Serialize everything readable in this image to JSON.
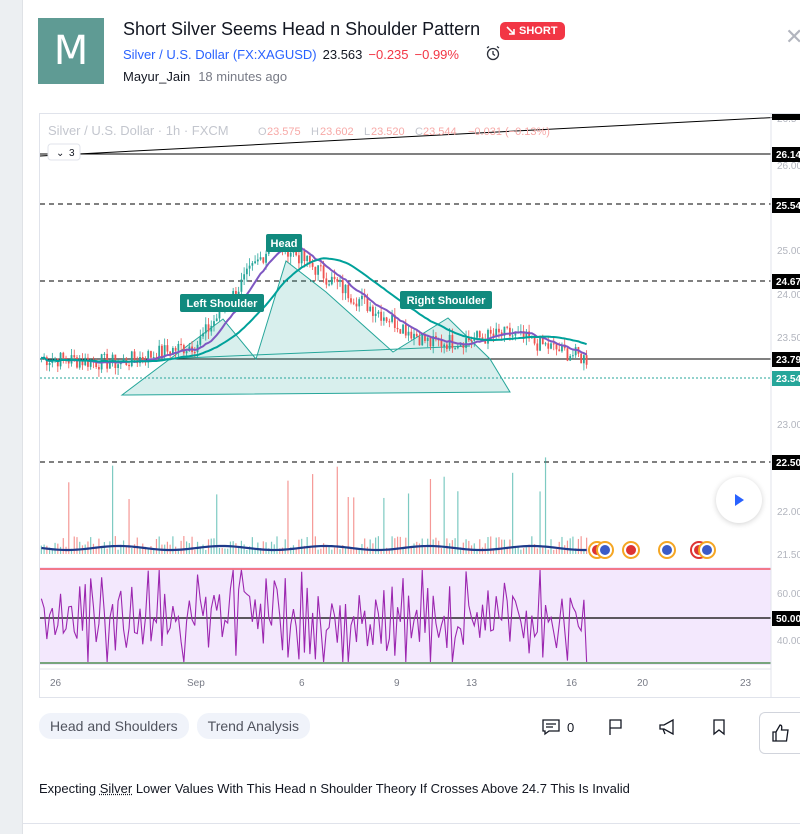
{
  "idea": {
    "avatar_letter": "M",
    "title": "Short Silver Seems Head n Shoulder Pattern",
    "badge": "SHORT",
    "symbol_name": "Silver / U.S. Dollar",
    "symbol_code": "(FX:XAGUSD)",
    "price": "23.563",
    "change": "−0.235",
    "change_pct": "−0.99%",
    "author": "Mayur_Jain",
    "time_ago": "18 minutes ago"
  },
  "chart": {
    "legend_symbol": "Silver / U.S. Dollar · 1h · FXCM",
    "ohlc": {
      "o_label": "O",
      "o": "23.575",
      "h_label": "H",
      "h": "23.602",
      "l_label": "L",
      "l": "23.520",
      "c_label": "C",
      "c": "23.544",
      "change": "−0.031 (−0.13%)"
    },
    "collapse_count": "3",
    "annotations": [
      "Head",
      "Left Shoulder",
      "Right Shoulder"
    ],
    "price_labels": [
      "26.14",
      "25.54",
      "24.67",
      "23.79",
      "23.54",
      "22.50",
      "50.00"
    ],
    "axis_ticks": [
      "26.00",
      "25.50",
      "25.00",
      "24.50",
      "24.00",
      "23.50",
      "23.00",
      "22.50",
      "22.00",
      "21.50",
      "60.00",
      "40.00",
      "26.5"
    ],
    "time_ticks": [
      "26",
      "Sep",
      "6",
      "9",
      "13",
      "16",
      "20",
      "23"
    ],
    "colors": {
      "up": "#26a69a",
      "down": "#ef5350",
      "ma1": "#7e57c2",
      "ma2": "#00a19a",
      "volma": "#1e3a8a",
      "rsi": "#9c27b0"
    }
  },
  "chart_data": {
    "type": "line",
    "title": "Silver / U.S. Dollar · 1h · FXCM",
    "x": [
      "26",
      "Sep",
      "6",
      "9",
      "13",
      "16",
      "20",
      "23"
    ],
    "series": [
      {
        "values": [
          23.55,
          23.5,
          23.7,
          24.8,
          24.2,
          23.7,
          23.8,
          23.54
        ]
      }
    ],
    "horizontal_levels": [
      26.14,
      25.54,
      24.67,
      23.79,
      22.5
    ],
    "ylim": [
      21.5,
      26.0
    ]
  },
  "tags": [
    "Head and Shoulders",
    "Trend Analysis"
  ],
  "actions": {
    "comments": "0"
  },
  "description": {
    "before": "Expecting ",
    "keyword": "Silver",
    "after": " Lower Values With This Head n Shoulder Theory If Crosses Above 24.7 This Is Invalid"
  }
}
